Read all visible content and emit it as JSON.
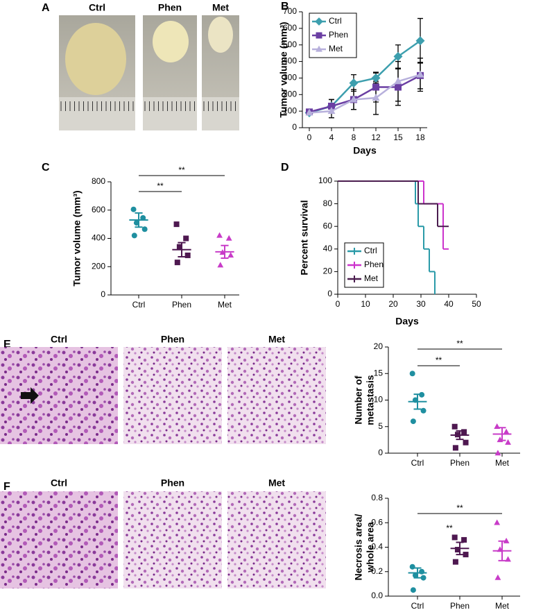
{
  "panel_letters": [
    "A",
    "B",
    "C",
    "D",
    "E",
    "F"
  ],
  "photo_labels": {
    "A": [
      "Ctrl",
      "Phen",
      "Met"
    ],
    "E": [
      "Ctrl",
      "Phen",
      "Met"
    ],
    "F": [
      "Ctrl",
      "Phen",
      "Met"
    ]
  },
  "chart_data": [
    {
      "type": "line",
      "xlabel": "Days",
      "ylabel": "Tumor volume (mm³)",
      "categories": [
        0,
        4,
        8,
        12,
        15,
        18
      ],
      "ylim": [
        0,
        700
      ],
      "yticks": [
        0,
        100,
        200,
        300,
        400,
        500,
        600,
        700
      ],
      "legend": "upper left",
      "series": [
        {
          "name": "Ctrl",
          "color": "#3d9fae",
          "marker": "diamond",
          "values": [
            90,
            130,
            270,
            300,
            430,
            525
          ],
          "errors": [
            10,
            40,
            50,
            30,
            70,
            135
          ]
        },
        {
          "name": "Phen",
          "color": "#6b3fa3",
          "marker": "square",
          "values": [
            95,
            130,
            170,
            245,
            245,
            315
          ],
          "errors": [
            10,
            40,
            60,
            90,
            110,
            80
          ]
        },
        {
          "name": "Met",
          "color": "#b7b0dc",
          "marker": "triangle",
          "values": [
            90,
            100,
            170,
            180,
            280,
            320
          ],
          "errors": [
            10,
            40,
            60,
            100,
            120,
            100
          ]
        }
      ]
    },
    {
      "type": "dotplot",
      "ylabel": "Tumor volume (mm³)",
      "categories": [
        "Ctrl",
        "Phen",
        "Met"
      ],
      "colors": [
        "#1f8fa0",
        "#4e1850",
        "#c83cc8"
      ],
      "markers": [
        "circle",
        "square",
        "triangle"
      ],
      "points": [
        [
          605,
          545,
          510,
          465,
          420
        ],
        [
          500,
          400,
          340,
          280,
          230
        ],
        [
          420,
          400,
          300,
          280,
          210
        ]
      ],
      "means": [
        530,
        320,
        305
      ],
      "sems": [
        50,
        50,
        45
      ],
      "ylim": [
        0,
        800
      ],
      "yticks": [
        0,
        200,
        400,
        600,
        800
      ],
      "annotations": [
        {
          "text": "**",
          "between": [
            0,
            1
          ]
        },
        {
          "text": "**",
          "between": [
            0,
            2
          ]
        }
      ]
    },
    {
      "type": "line",
      "drawstyle": "steps-post",
      "xlabel": "Days",
      "ylabel": "Percent survival",
      "xlim": [
        0,
        50
      ],
      "xticks": [
        0,
        10,
        20,
        30,
        40,
        50
      ],
      "ylim": [
        0,
        100
      ],
      "yticks": [
        0,
        20,
        40,
        60,
        80,
        100
      ],
      "legend": "lower left",
      "series": [
        {
          "name": "Ctrl",
          "color": "#2a9aa8",
          "x": [
            0,
            28,
            29,
            31,
            33,
            35
          ],
          "values": [
            100,
            80,
            60,
            40,
            20,
            0
          ]
        },
        {
          "name": "Phen",
          "color": "#cc33cc",
          "x": [
            0,
            31,
            38,
            40
          ],
          "values": [
            100,
            80,
            40,
            40
          ]
        },
        {
          "name": "Met",
          "color": "#4b1d4f",
          "x": [
            0,
            29,
            36,
            40
          ],
          "values": [
            100,
            80,
            60,
            60
          ]
        }
      ]
    },
    {
      "type": "dotplot",
      "ylabel": [
        "Number of",
        "metastasis"
      ],
      "categories": [
        "Ctrl",
        "Phen",
        "Met"
      ],
      "colors": [
        "#1f8fa0",
        "#4e1850",
        "#c83cc8"
      ],
      "markers": [
        "circle",
        "square",
        "triangle"
      ],
      "points": [
        [
          15,
          11,
          10,
          8,
          6
        ],
        [
          5,
          4,
          3.5,
          2,
          1
        ],
        [
          5,
          4,
          2.5,
          2,
          0
        ]
      ],
      "means": [
        9.7,
        3.4,
        3.6
      ],
      "sems": [
        1.4,
        0.8,
        1.2
      ],
      "ylim": [
        0,
        20
      ],
      "yticks": [
        0,
        5,
        10,
        15,
        20
      ],
      "annotations": [
        {
          "text": "**",
          "between": [
            0,
            1
          ]
        },
        {
          "text": "**",
          "between": [
            0,
            2
          ]
        }
      ]
    },
    {
      "type": "dotplot",
      "ylabel": [
        "Necrosis area/",
        "whole area"
      ],
      "categories": [
        "Ctrl",
        "Phen",
        "Met"
      ],
      "colors": [
        "#1f8fa0",
        "#4e1850",
        "#c83cc8"
      ],
      "markers": [
        "circle",
        "square",
        "triangle"
      ],
      "points": [
        [
          0.24,
          0.2,
          0.17,
          0.15,
          0.05
        ],
        [
          0.48,
          0.46,
          0.38,
          0.34,
          0.28
        ],
        [
          0.6,
          0.45,
          0.38,
          0.3,
          0.15
        ]
      ],
      "means": [
        0.19,
        0.39,
        0.37
      ],
      "sems": [
        0.04,
        0.05,
        0.08
      ],
      "ylim": [
        0,
        0.8
      ],
      "yticks": [
        {
          "value": 0,
          "label": "0.0"
        },
        0.2,
        0.4,
        0.6,
        0.8
      ],
      "annotations": [
        {
          "text": "**",
          "between": [
            0,
            2
          ]
        },
        {
          "text": "**",
          "at": 1
        }
      ]
    }
  ]
}
